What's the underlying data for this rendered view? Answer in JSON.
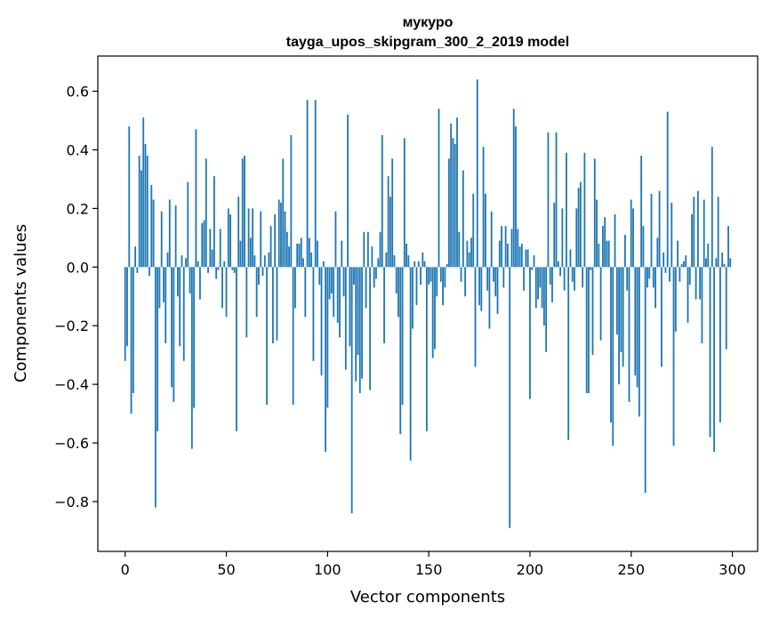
{
  "chart_data": {
    "type": "bar",
    "title": "мукуро",
    "subtitle": "tayga_upos_skipgram_300_2_2019 model",
    "xlabel": "Vector components",
    "ylabel": "Components values",
    "xlim": [
      -13.5,
      312.5
    ],
    "ylim": [
      -0.97,
      0.72
    ],
    "xticks": [
      0,
      50,
      100,
      150,
      200,
      250,
      300
    ],
    "yticks": [
      -0.8,
      -0.6,
      -0.4,
      -0.2,
      0.0,
      0.2,
      0.4,
      0.6
    ],
    "ytick_labels": [
      "−0.8",
      "−0.6",
      "−0.4",
      "−0.2",
      "0.0",
      "0.2",
      "0.4",
      "0.6"
    ],
    "bar_color": "#1f77b4",
    "n_components": 300,
    "values": [
      -0.32,
      -0.27,
      0.48,
      -0.5,
      -0.43,
      0.07,
      -0.02,
      0.38,
      0.33,
      0.51,
      0.42,
      0.38,
      -0.03,
      0.28,
      0.23,
      -0.82,
      -0.56,
      -0.14,
      0.19,
      -0.12,
      -0.26,
      0.05,
      0.23,
      -0.41,
      -0.46,
      0.21,
      -0.1,
      -0.27,
      0.04,
      -0.32,
      0.03,
      0.29,
      -0.09,
      -0.62,
      -0.48,
      0.47,
      0.02,
      -0.11,
      0.15,
      0.16,
      0.37,
      -0.02,
      0.13,
      0.06,
      0.31,
      -0.04,
      -0.01,
      0.13,
      -0.14,
      0.02,
      -0.17,
      0.2,
      0.18,
      -0.01,
      -0.02,
      -0.56,
      0.24,
      0.09,
      0.37,
      0.38,
      -0.24,
      0.2,
      0.1,
      0.2,
      0.04,
      -0.17,
      -0.06,
      0.19,
      -0.03,
      0.04,
      -0.47,
      0.05,
      0.14,
      -0.26,
      0.18,
      -0.25,
      0.23,
      0.22,
      0.37,
      0.19,
      0.12,
      0.07,
      0.45,
      -0.47,
      -0.14,
      0.08,
      0.08,
      0.1,
      0.03,
      -0.17,
      0.57,
      0.1,
      0.05,
      -0.32,
      0.57,
      0.09,
      -0.06,
      -0.37,
      0.02,
      -0.63,
      -0.48,
      -0.11,
      -0.09,
      -0.17,
      0.19,
      -0.19,
      -0.24,
      0.09,
      -0.1,
      -0.35,
      0.52,
      -0.27,
      -0.84,
      -0.06,
      -0.39,
      -0.3,
      -0.43,
      -0.38,
      0.12,
      -0.14,
      0.12,
      -0.42,
      0.07,
      -0.07,
      -0.04,
      0.03,
      0.12,
      0.45,
      -0.26,
      0.05,
      0.31,
      0.24,
      0.37,
      0.04,
      -0.09,
      -0.17,
      -0.57,
      -0.47,
      0.44,
      0.08,
      0.04,
      -0.66,
      -0.21,
      0.02,
      -0.13,
      0.02,
      -0.06,
      0.05,
      0.02,
      -0.56,
      -0.06,
      -0.05,
      -0.31,
      -0.28,
      -0.1,
      0.54,
      -0.05,
      -0.13,
      -0.07,
      0.01,
      0.37,
      0.49,
      0.44,
      0.42,
      0.51,
      0.12,
      -0.05,
      0.33,
      -0.1,
      0.09,
      0.05,
      0.1,
      0.25,
      -0.34,
      0.64,
      -0.13,
      -0.15,
      0.41,
      0.25,
      -0.08,
      -0.21,
      0.19,
      -0.05,
      -0.1,
      -0.16,
      0.09,
      0.14,
      -0.07,
      0.14,
      0.08,
      -0.89,
      0.13,
      0.54,
      0.48,
      0.13,
      0.07,
      0.08,
      -0.08,
      0.06,
      0.06,
      -0.45,
      -0.01,
      0.04,
      -0.14,
      -0.11,
      -0.07,
      -0.14,
      -0.2,
      -0.29,
      0.46,
      -0.06,
      -0.12,
      0.22,
      0.46,
      0.02,
      -0.03,
      0.2,
      -0.08,
      0.39,
      -0.59,
      0.06,
      -0.05,
      -0.08,
      0.2,
      0.27,
      0.29,
      -0.07,
      0.39,
      -0.43,
      -0.43,
      -0.01,
      -0.3,
      0.37,
      0.23,
      0.08,
      -0.25,
      0.14,
      0.17,
      0.09,
      0.09,
      -0.53,
      -0.61,
      0.18,
      -0.23,
      -0.4,
      -0.29,
      -0.34,
      0.11,
      -0.08,
      -0.46,
      0.23,
      0.2,
      -0.37,
      -0.41,
      -0.51,
      0.38,
      0.14,
      -0.77,
      -0.07,
      -0.04,
      0.25,
      -0.07,
      -0.14,
      0.1,
      0.26,
      -0.34,
      0.05,
      -0.02,
      0.53,
      -0.05,
      0.22,
      -0.61,
      -0.22,
      0.09,
      -0.05,
      0.01,
      0.02,
      0.04,
      -0.19,
      -0.06,
      0.18,
      0.24,
      -0.11,
      0.26,
      -0.11,
      -0.26,
      0.23,
      0.03,
      0.08,
      -0.58,
      0.41,
      -0.63,
      0.03,
      0.24,
      -0.53,
      0.05,
      0.01,
      -0.28,
      0.14,
      0.03
    ]
  }
}
